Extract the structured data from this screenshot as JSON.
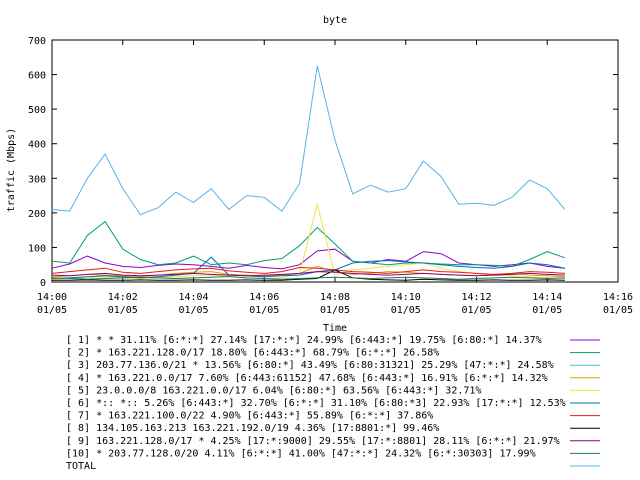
{
  "chart_data": {
    "type": "line",
    "title": "byte",
    "xlabel": "Time",
    "ylabel": "traffic (Mbps)",
    "ylim": [
      0,
      700
    ],
    "yticks": [
      0,
      100,
      200,
      300,
      400,
      500,
      600,
      700
    ],
    "xlim_minutes": [
      0,
      16
    ],
    "xtick_minutes": [
      0,
      2,
      4,
      6,
      8,
      10,
      12,
      14,
      16
    ],
    "xticks": [
      {
        "time": "14:00",
        "date": "01/05"
      },
      {
        "time": "14:02",
        "date": "01/05"
      },
      {
        "time": "14:04",
        "date": "01/05"
      },
      {
        "time": "14:06",
        "date": "01/05"
      },
      {
        "time": "14:08",
        "date": "01/05"
      },
      {
        "time": "14:10",
        "date": "01/05"
      },
      {
        "time": "14:12",
        "date": "01/05"
      },
      {
        "time": "14:14",
        "date": "01/05"
      },
      {
        "time": "14:16",
        "date": "01/05"
      }
    ],
    "grid": false,
    "legend_position": "bottom",
    "x_minutes": [
      0,
      0.5,
      1,
      1.5,
      2,
      2.5,
      3,
      3.5,
      4,
      4.5,
      5,
      5.5,
      6,
      6.5,
      7,
      7.5,
      8,
      8.5,
      9,
      9.5,
      10,
      10.5,
      11,
      11.5,
      12,
      12.5,
      13,
      13.5,
      14,
      14.5
    ],
    "series": [
      {
        "name": "[ 1] * * 31.11%  [6:*:*] 27.14% [17:*:*] 24.99% [6:443:*] 19.75% [6:80:*] 14.37%",
        "color": "#9400d3",
        "values": [
          40,
          52,
          75,
          55,
          45,
          42,
          48,
          52,
          50,
          45,
          40,
          48,
          42,
          38,
          50,
          90,
          95,
          60,
          55,
          65,
          60,
          88,
          82,
          55,
          50,
          45,
          50,
          55,
          45,
          40
        ]
      },
      {
        "name": "[ 2] * 163.221.128.0/17 18.80%  [6:443:*] 68.79% [6:*:*] 26.58%",
        "color": "#009e73",
        "values": [
          60,
          55,
          135,
          175,
          95,
          65,
          50,
          55,
          75,
          50,
          55,
          50,
          62,
          68,
          105,
          158,
          110,
          60,
          55,
          50,
          55,
          55,
          52,
          50,
          50,
          48,
          45,
          65,
          88,
          70
        ]
      },
      {
        "name": "[ 3] 203.77.136.0/21 * 13.56%  [6:80:*] 43.49% [6:80:31321] 25.29% [47:*:*] 24.58%",
        "color": "#56b4e9",
        "values": [
          210,
          205,
          300,
          370,
          270,
          195,
          215,
          260,
          230,
          270,
          210,
          250,
          245,
          205,
          285,
          625,
          410,
          255,
          280,
          260,
          270,
          350,
          305,
          225,
          228,
          222,
          245,
          295,
          270,
          210
        ]
      },
      {
        "name": "[ 4] * 163.221.0.0/17 7.60%  [6:443:61152] 47.68% [6:443:*] 16.91% [6:*:*] 14.32%",
        "color": "#e69f00",
        "values": [
          15,
          18,
          22,
          20,
          18,
          15,
          20,
          25,
          28,
          30,
          22,
          20,
          18,
          20,
          25,
          45,
          30,
          22,
          25,
          30,
          28,
          25,
          22,
          20,
          18,
          22,
          25,
          20,
          18,
          15
        ]
      },
      {
        "name": "[ 5] 23.0.0.0/8 163.221.0.0/17 6.04%  [6:80:*] 63.56% [6:443:*] 32.71%",
        "color": "#f0e442",
        "values": [
          8,
          10,
          12,
          15,
          12,
          10,
          12,
          15,
          18,
          20,
          15,
          12,
          10,
          12,
          25,
          225,
          20,
          35,
          40,
          45,
          50,
          55,
          40,
          30,
          25,
          20,
          18,
          15,
          12,
          10
        ]
      },
      {
        "name": "[ 6] *:: *:: 5.26%  [6:443:*] 32.70% [6:*:*] 31.10% [6:80:*3] 22.93% [17:*:*] 12.53%",
        "color": "#0072b2",
        "values": [
          10,
          12,
          15,
          18,
          15,
          12,
          15,
          20,
          25,
          72,
          20,
          18,
          15,
          18,
          20,
          30,
          35,
          55,
          60,
          62,
          58,
          55,
          50,
          45,
          42,
          40,
          45,
          55,
          50,
          40
        ]
      },
      {
        "name": "[ 7] * 163.221.100.0/22 4.90%  [6:443:*] 55.89% [6:*:*] 37.86%",
        "color": "#e51e10",
        "values": [
          25,
          30,
          35,
          40,
          28,
          25,
          30,
          35,
          38,
          40,
          32,
          28,
          25,
          30,
          42,
          40,
          35,
          30,
          28,
          25,
          30,
          35,
          30,
          28,
          25,
          22,
          25,
          30,
          28,
          25
        ]
      },
      {
        "name": "[ 8] 134.105.163.213 163.221.192.0/19 4.36%  [17:8801:*] 99.46%",
        "color": "#000000",
        "values": [
          5,
          5,
          6,
          5,
          5,
          6,
          5,
          5,
          6,
          5,
          5,
          6,
          5,
          5,
          8,
          10,
          35,
          12,
          8,
          6,
          5,
          8,
          6,
          5,
          5,
          6,
          5,
          5,
          6,
          5
        ]
      },
      {
        "name": "[ 9] 163.221.128.0/17 * 4.25%  [17:*:9000] 29.55% [17:*:8801] 28.11% [6:*:*] 21.97%",
        "color": "#8b008b",
        "values": [
          20,
          18,
          22,
          25,
          20,
          18,
          20,
          22,
          25,
          22,
          20,
          18,
          20,
          22,
          25,
          30,
          28,
          25,
          22,
          20,
          22,
          25,
          22,
          20,
          18,
          20,
          22,
          25,
          22,
          20
        ]
      },
      {
        "name": "[10] * 203.77.128.0/20 4.11%  [6:*:*] 41.00% [47:*:*] 24.32% [6:*:30303] 17.99%",
        "color": "#1a7f4b",
        "values": [
          12,
          10,
          8,
          10,
          12,
          14,
          12,
          10,
          12,
          14,
          16,
          12,
          10,
          8,
          10,
          12,
          14,
          12,
          10,
          12,
          14,
          12,
          10,
          8,
          10,
          12,
          14,
          12,
          10,
          12
        ]
      },
      {
        "name": "TOTAL",
        "color": "#56b4e9",
        "values": []
      }
    ]
  }
}
